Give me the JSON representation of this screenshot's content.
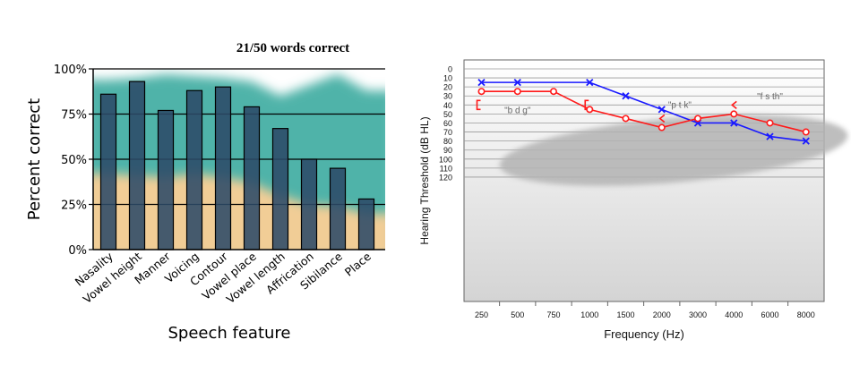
{
  "chart_data": [
    {
      "type": "bar",
      "title": "21/50 words correct",
      "xlabel": "Speech feature",
      "ylabel": "Percent correct",
      "ylim": [
        0,
        100
      ],
      "yticks": [
        "0%",
        "25%",
        "50%",
        "75%",
        "100%"
      ],
      "ytick_values": [
        0,
        25,
        50,
        75,
        100
      ],
      "grid": true,
      "categories": [
        "Nasality",
        "Vowel height",
        "Manner",
        "Voicing",
        "Contour",
        "Vowel place",
        "Vowel length",
        "Affrication",
        "Sibilance",
        "Place"
      ],
      "values": [
        86,
        93,
        77,
        88,
        90,
        79,
        67,
        50,
        45,
        28
      ],
      "background_bands": {
        "lower_band_color": "#f1cd96",
        "upper_band_color": "#4fb3a9",
        "lower_band_top": [
          42,
          41,
          40,
          42,
          40,
          37,
          30,
          25,
          24,
          20
        ],
        "upper_band_top": [
          94,
          95,
          97,
          96,
          95,
          93,
          85,
          91,
          97,
          88
        ]
      },
      "colors": {
        "bar": "#2c4a68",
        "bar_edge": "#000000",
        "axis": "#000000"
      }
    },
    {
      "type": "line",
      "xlabel": "Frequency (Hz)",
      "ylabel": "Hearing Threshold (dB HL)",
      "x": [
        "250",
        "500",
        "750",
        "1000",
        "1500",
        "2000",
        "3000",
        "4000",
        "6000",
        "8000"
      ],
      "ylim": [
        0,
        120
      ],
      "y_inverted": true,
      "yticks": [
        0,
        10,
        20,
        30,
        40,
        50,
        60,
        70,
        80,
        90,
        100,
        110,
        120
      ],
      "grid": true,
      "series": [
        {
          "marker": "x",
          "color": "#1a1aff",
          "points": [
            {
              "x": "250",
              "y": 15
            },
            {
              "x": "500",
              "y": 15
            },
            {
              "x": "1000",
              "y": 15
            },
            {
              "x": "1500",
              "y": 30
            },
            {
              "x": "2000",
              "y": 45
            },
            {
              "x": "3000",
              "y": 60
            },
            {
              "x": "4000",
              "y": 60
            },
            {
              "x": "6000",
              "y": 75
            },
            {
              "x": "8000",
              "y": 80
            }
          ]
        },
        {
          "marker": "o",
          "color": "#ff1a1a",
          "points": [
            {
              "x": "250",
              "y": 25
            },
            {
              "x": "500",
              "y": 25
            },
            {
              "x": "750",
              "y": 25
            },
            {
              "x": "1000",
              "y": 45
            },
            {
              "x": "1500",
              "y": 55
            },
            {
              "x": "2000",
              "y": 65
            },
            {
              "x": "3000",
              "y": 55
            },
            {
              "x": "4000",
              "y": 50
            },
            {
              "x": "6000",
              "y": 60
            },
            {
              "x": "8000",
              "y": 70
            }
          ]
        }
      ],
      "bone_markers": [
        {
          "symbol": "[",
          "x": "250",
          "y": 40
        },
        {
          "symbol": "[",
          "x": "1000",
          "y": 40
        },
        {
          "symbol": "<",
          "x": "2000",
          "y": 55
        },
        {
          "symbol": "<",
          "x": "4000",
          "y": 40
        }
      ],
      "annotations": [
        {
          "text": "\"b d g\"",
          "x": "500",
          "y": 46
        },
        {
          "text": "\"p t k\"",
          "x": "2500",
          "y": 40
        },
        {
          "text": "\"f s th\"",
          "x": "6000",
          "y": 31
        }
      ],
      "colors": {
        "banana": "#b8b8b8",
        "plot_bg_top": "#ffffff",
        "plot_bg_bottom": "#d9d9d9",
        "grid": "#9a9a9a"
      }
    }
  ]
}
